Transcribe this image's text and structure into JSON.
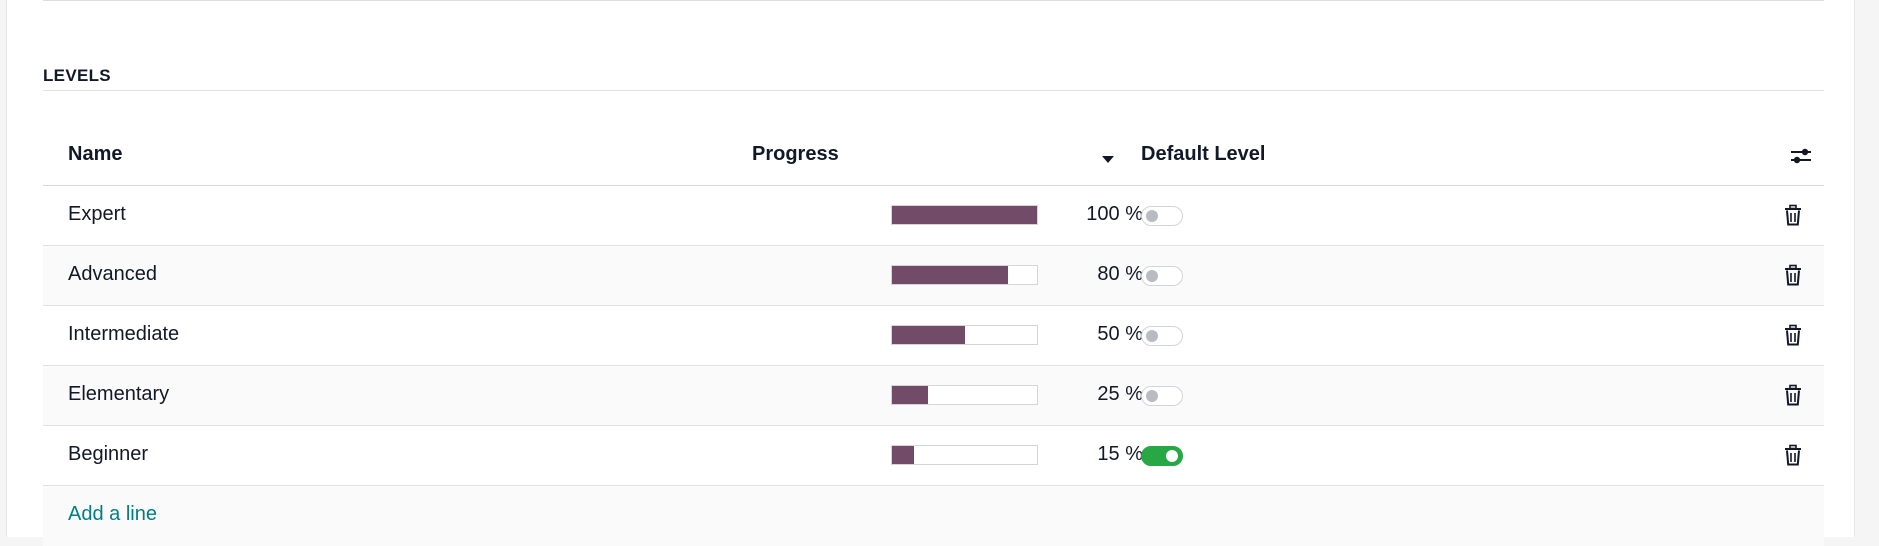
{
  "section": {
    "title": "LEVELS"
  },
  "table": {
    "columns": {
      "name": "Name",
      "progress": "Progress",
      "default_level": "Default Level"
    },
    "sort_icon": "caret-down-icon",
    "options_icon": "sliders-icon",
    "rows": [
      {
        "name": "Expert",
        "progress": 100,
        "progress_label": "100 %",
        "default": false
      },
      {
        "name": "Advanced",
        "progress": 80,
        "progress_label": "80 %",
        "default": false
      },
      {
        "name": "Intermediate",
        "progress": 50,
        "progress_label": "50 %",
        "default": false
      },
      {
        "name": "Elementary",
        "progress": 25,
        "progress_label": "25 %",
        "default": false
      },
      {
        "name": "Beginner",
        "progress": 15,
        "progress_label": "15 %",
        "default": true
      }
    ],
    "row_delete_icon": "trash-icon",
    "add_line": "Add a line"
  },
  "colors": {
    "progress_fill": "#714b67",
    "toggle_on": "#28a745",
    "link": "#017e84"
  }
}
